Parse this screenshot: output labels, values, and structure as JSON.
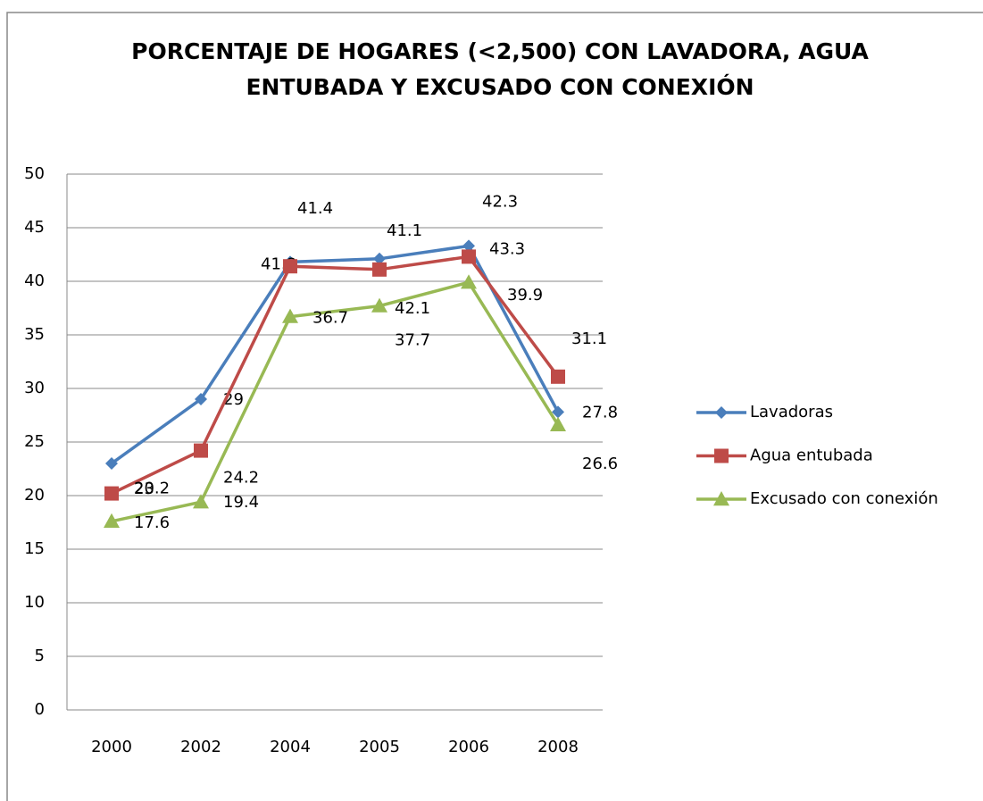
{
  "chart_data": {
    "type": "line",
    "title": "PORCENTAJE DE HOGARES (<2,500) CON LAVADORA, AGUA ENTUBADA Y EXCUSADO CON CONEXIÓN",
    "categories": [
      "2000",
      "2002",
      "2004",
      "2005",
      "2006",
      "2008"
    ],
    "series": [
      {
        "name": "Lavadoras",
        "color": "#4a7ebb",
        "marker": "diamond",
        "values": [
          23,
          29,
          41.8,
          42.1,
          43.3,
          27.8
        ]
      },
      {
        "name": "Agua entubada",
        "color": "#be4b48",
        "marker": "square",
        "values": [
          20.2,
          24.2,
          41.4,
          41.1,
          42.3,
          31.1
        ]
      },
      {
        "name": "Excusado con conexión",
        "color": "#98b954",
        "marker": "triangle",
        "values": [
          17.6,
          19.4,
          36.7,
          37.7,
          39.9,
          26.6
        ]
      }
    ],
    "ylim": [
      0,
      50
    ],
    "yticks": [
      0,
      5,
      10,
      15,
      20,
      25,
      30,
      35,
      40,
      45,
      50
    ],
    "grid": true,
    "legend": "right"
  }
}
